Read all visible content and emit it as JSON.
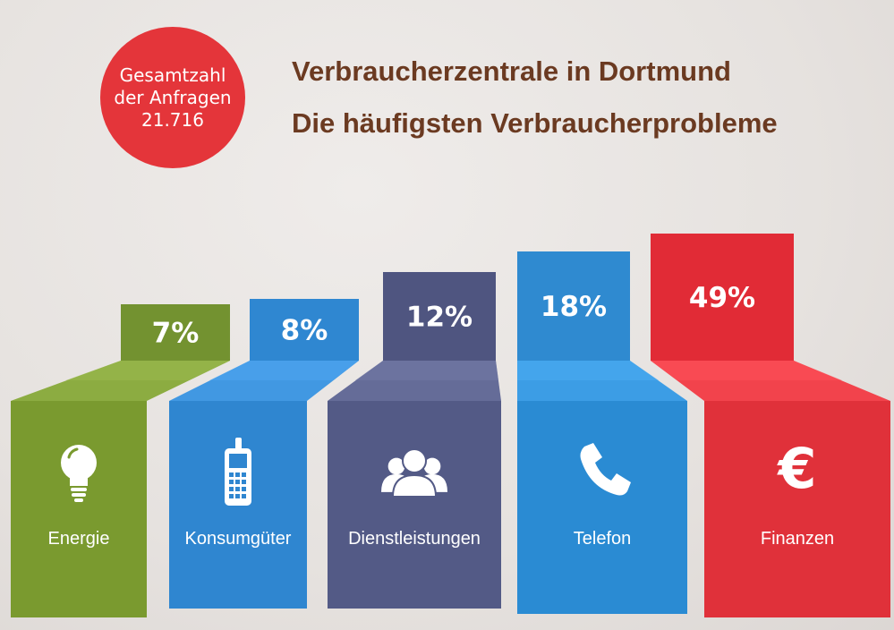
{
  "badge": {
    "line1": "Gesamtzahl",
    "line2": "der Anfragen",
    "total": "21.716"
  },
  "title": {
    "line1": "Verbraucherzentrale in Dortmund",
    "line2": "Die häufigsten Verbraucherprobleme"
  },
  "chart_data": {
    "type": "bar",
    "title": "Die häufigsten Verbraucherprobleme",
    "categories": [
      "Energie",
      "Konsumgüter",
      "Dienstleistungen",
      "Telefon",
      "Finanzen"
    ],
    "values": [
      7,
      8,
      12,
      18,
      49
    ],
    "value_labels": [
      "7%",
      "8%",
      "12%",
      "18%",
      "49%"
    ],
    "icons": [
      "lightbulb-icon",
      "mobile-phone-icon",
      "people-icon",
      "telephone-icon",
      "euro-icon"
    ],
    "colors": [
      "#7a9a2f",
      "#2f86d0",
      "#535a86",
      "#2a8bd3",
      "#e0313a"
    ],
    "top_colors": [
      "#739230",
      "#2f87d1",
      "#4f5580",
      "#2f8ad0",
      "#e12b36"
    ]
  }
}
